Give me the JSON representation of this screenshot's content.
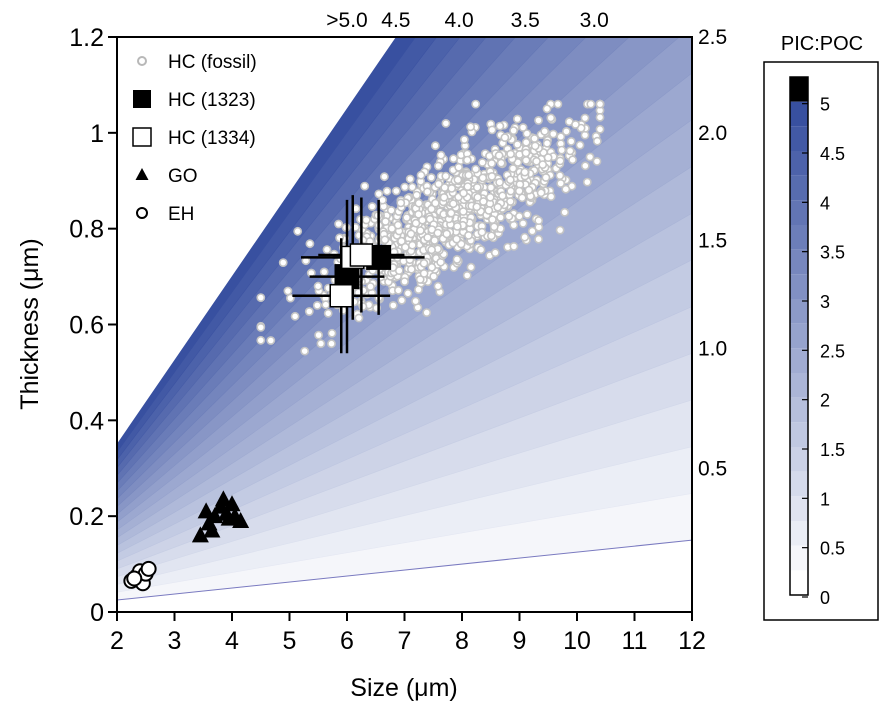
{
  "chart_data": {
    "type": "scatter",
    "xlabel": "Size (μm)",
    "ylabel": "Thickness (μm)",
    "xlim": [
      2,
      12
    ],
    "ylim": [
      0,
      1.2
    ],
    "x_ticks": [
      2,
      3,
      4,
      5,
      6,
      7,
      8,
      9,
      10,
      11,
      12
    ],
    "y_ticks": [
      0,
      0.2,
      0.4,
      0.6,
      0.8,
      1,
      1.2
    ],
    "y_tick_labels": [
      "0",
      "0.2",
      "0.4",
      "0.6",
      "0.8",
      "1",
      "1.2"
    ],
    "right_axis_labels": [
      {
        "label": "2.5",
        "y": 1.2
      },
      {
        "label": "2.0",
        "y": 1.0
      },
      {
        "label": "1.5",
        "y": 0.775
      },
      {
        "label": "1.0",
        "y": 0.55
      },
      {
        "label": "0.5",
        "y": 0.3
      }
    ],
    "top_axis_labels": [
      {
        "label": ">5.0",
        "x": 6.0
      },
      {
        "label": "4.5",
        "x": 6.85
      },
      {
        "label": "4.0",
        "x": 7.95
      },
      {
        "label": "3.5",
        "x": 9.1
      },
      {
        "label": "3.0",
        "x": 10.3
      }
    ],
    "contour_levels": [
      0,
      0.25,
      0.5,
      0.75,
      1,
      1.25,
      1.5,
      1.75,
      2,
      2.25,
      2.5,
      2.75,
      3,
      3.25,
      3.5,
      3.75,
      4,
      4.25,
      4.5,
      4.75,
      5
    ],
    "colorbar": {
      "title": "PIC:POC",
      "tick_labels": [
        "5",
        "4.5",
        "4",
        "3.5",
        "3",
        "2.5",
        "2",
        "1.5",
        "1",
        "0.5",
        "0"
      ],
      "low_color": "#ffffff",
      "high_color": "#3850a0",
      "top_color": "#000000"
    },
    "legend": {
      "placement": "top-left",
      "entries": [
        {
          "label": "HC (fossil)",
          "marker": "small-open-circle",
          "color": "#b8b8b8"
        },
        {
          "label": "HC (1323)",
          "marker": "filled-square",
          "color": "#000000"
        },
        {
          "label": "HC (1334)",
          "marker": "open-square",
          "color": "#000000"
        },
        {
          "label": "GO",
          "marker": "filled-triangle",
          "color": "#000000"
        },
        {
          "label": "EH",
          "marker": "open-circle",
          "color": "#000000"
        }
      ]
    },
    "series": [
      {
        "name": "HC (1323)",
        "points": [
          {
            "x": 6.0,
            "y": 0.7,
            "xerr": 0.65,
            "yerr": 0.16
          },
          {
            "x": 6.55,
            "y": 0.74,
            "xerr": 0.8,
            "yerr": 0.12
          }
        ]
      },
      {
        "name": "HC (1334)",
        "points": [
          {
            "x": 5.9,
            "y": 0.66,
            "xerr": 0.85,
            "yerr": 0.12
          },
          {
            "x": 6.1,
            "y": 0.74,
            "xerr": 0.9,
            "yerr": 0.13
          },
          {
            "x": 6.25,
            "y": 0.745,
            "xerr": 0.75,
            "yerr": 0.12
          }
        ]
      },
      {
        "name": "GO",
        "points": [
          {
            "x": 3.45,
            "y": 0.16
          },
          {
            "x": 3.55,
            "y": 0.21
          },
          {
            "x": 3.6,
            "y": 0.185
          },
          {
            "x": 3.7,
            "y": 0.2
          },
          {
            "x": 3.8,
            "y": 0.22
          },
          {
            "x": 3.85,
            "y": 0.235
          },
          {
            "x": 3.9,
            "y": 0.205
          },
          {
            "x": 3.95,
            "y": 0.195
          },
          {
            "x": 4.0,
            "y": 0.225
          },
          {
            "x": 4.05,
            "y": 0.2
          },
          {
            "x": 4.15,
            "y": 0.19
          },
          {
            "x": 3.65,
            "y": 0.17
          }
        ]
      },
      {
        "name": "EH",
        "points": [
          {
            "x": 2.25,
            "y": 0.065
          },
          {
            "x": 2.35,
            "y": 0.075
          },
          {
            "x": 2.4,
            "y": 0.085
          },
          {
            "x": 2.45,
            "y": 0.06
          },
          {
            "x": 2.5,
            "y": 0.08
          },
          {
            "x": 2.55,
            "y": 0.09
          },
          {
            "x": 2.3,
            "y": 0.07
          }
        ]
      }
    ],
    "fossil_cloud": {
      "name": "HC (fossil)",
      "count": 1000,
      "x_range": [
        4.5,
        10.4
      ],
      "y_range": [
        0.52,
        1.06
      ],
      "center": [
        7.8,
        0.83
      ]
    }
  }
}
